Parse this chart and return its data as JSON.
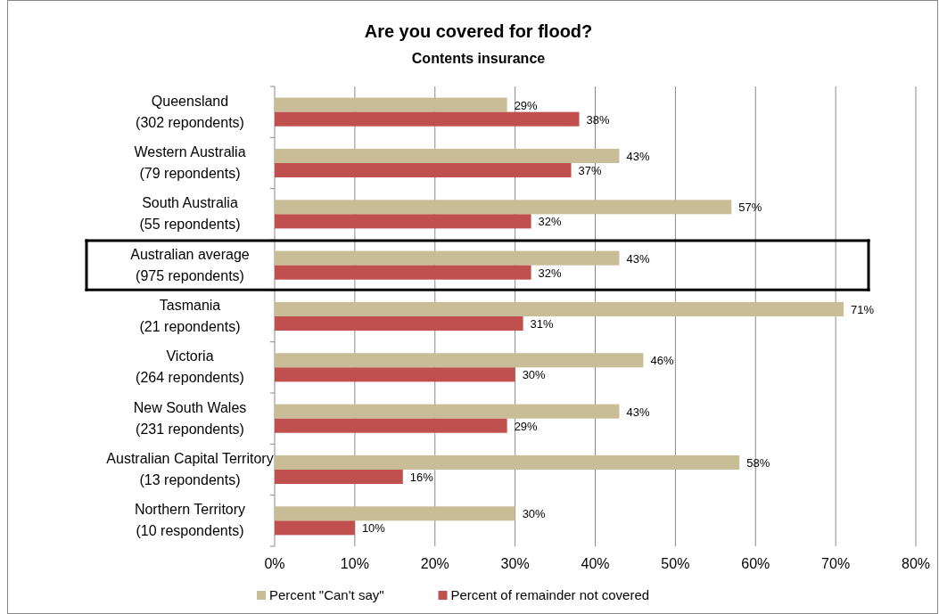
{
  "chart_data": {
    "type": "bar",
    "orientation": "horizontal",
    "title": "Are you covered for flood?",
    "subtitle": "Contents insurance",
    "categories": [
      "Queensland\n(302 repondents)",
      "Western Australia\n(79 repondents)",
      "South Australia\n(55 repondents)",
      "Australian average\n(975 repondents)",
      "Tasmania\n(21 repondents)",
      "Victoria\n(264 repondents)",
      "New South Wales\n(231 repondents)",
      "Australian Capital Territory\n(13 repondents)",
      "Northern Territory\n(10 respondents)"
    ],
    "series": [
      {
        "name": "Percent \"Can't say\"",
        "color": "#c8bd97",
        "values": [
          29,
          43,
          57,
          43,
          71,
          46,
          43,
          58,
          30
        ],
        "value_labels": [
          "29%",
          "43%",
          "57%",
          "43%",
          "71%",
          "46%",
          "43%",
          "58%",
          "30%"
        ]
      },
      {
        "name": "Percent of remainder not covered",
        "color": "#c0504d",
        "values": [
          38,
          37,
          32,
          32,
          31,
          30,
          29,
          16,
          10
        ],
        "value_labels": [
          "38%",
          "37%",
          "32%",
          "32%",
          "31%",
          "30%",
          "29%",
          "16%",
          "10%"
        ]
      }
    ],
    "xlim": [
      0,
      80
    ],
    "xticks": [
      {
        "value": 0,
        "label": "0%"
      },
      {
        "value": 10,
        "label": "10%"
      },
      {
        "value": 20,
        "label": "20%"
      },
      {
        "value": 30,
        "label": "30%"
      },
      {
        "value": 40,
        "label": "40%"
      },
      {
        "value": 50,
        "label": "50%"
      },
      {
        "value": 60,
        "label": "60%"
      },
      {
        "value": 70,
        "label": "70%"
      },
      {
        "value": 80,
        "label": "80%"
      }
    ],
    "grid": "x",
    "legend": "bottom"
  }
}
